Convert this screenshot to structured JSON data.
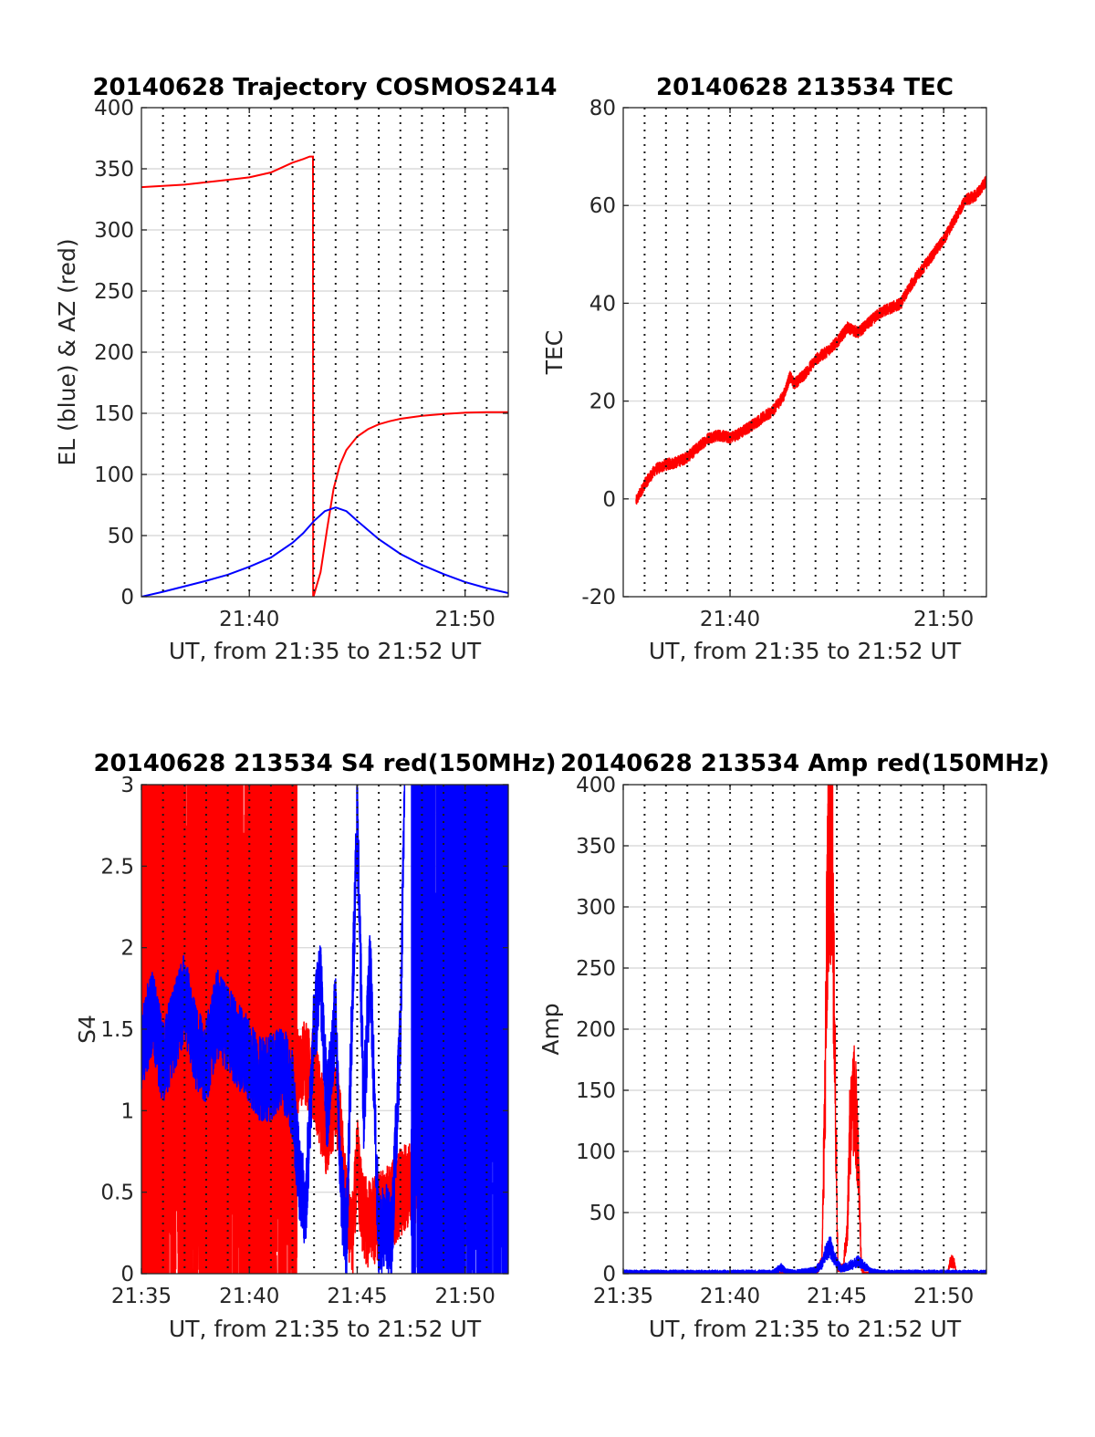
{
  "colors": {
    "red": "#ff0000",
    "blue": "#0000ff",
    "axis": "#262626",
    "grid": "#dcdcdc"
  },
  "chart_data": [
    {
      "id": "trajectory",
      "type": "line",
      "title": "20140628 Trajectory COSMOS2414",
      "xlabel": "UT, from 21:35 to 21:52 UT",
      "ylabel": "EL (blue) & AZ (red)",
      "xlim": [
        0,
        17
      ],
      "ylim": [
        0,
        400
      ],
      "x_ticks": [
        5,
        15
      ],
      "x_tick_labels": [
        "21:40",
        "21:50"
      ],
      "y_ticks": [
        0,
        50,
        100,
        150,
        200,
        250,
        300,
        350,
        400
      ],
      "y_tick_labels": [
        "0",
        "50",
        "100",
        "150",
        "200",
        "250",
        "300",
        "350",
        "400"
      ],
      "vgrid_minutes": [
        1,
        2,
        3,
        4,
        5,
        6,
        7,
        8,
        9,
        10,
        11,
        12,
        13,
        14,
        15,
        16
      ],
      "series": [
        {
          "color": "red",
          "x": [
            0,
            1,
            2,
            3,
            4,
            5,
            6,
            6.5,
            7,
            7.5,
            7.8,
            7.95,
            7.96,
            7.97,
            8.3,
            8.6,
            8.9,
            9.2,
            9.5,
            10,
            10.5,
            11,
            11.5,
            12,
            13,
            14,
            15,
            16,
            17
          ],
          "y": [
            335,
            336,
            337,
            339,
            341,
            343,
            347,
            351,
            355,
            358,
            360,
            360,
            0,
            0,
            20,
            55,
            88,
            108,
            120,
            131,
            137,
            141,
            143.5,
            145.5,
            148,
            149.5,
            150.5,
            151,
            151
          ]
        },
        {
          "color": "blue",
          "x": [
            0,
            1,
            2,
            3,
            4,
            5,
            6,
            7,
            7.5,
            8,
            8.5,
            9,
            9.5,
            10,
            11,
            12,
            13,
            14,
            15,
            16,
            17
          ],
          "y": [
            0,
            4,
            8.5,
            13,
            18,
            24.5,
            32,
            44,
            52,
            62,
            70,
            73,
            70,
            62,
            47,
            35,
            26,
            18.5,
            12,
            7,
            3
          ]
        }
      ]
    },
    {
      "id": "tec",
      "type": "line",
      "title": "20140628 213534 TEC",
      "xlabel": "UT, from 21:35 to 21:52 UT",
      "ylabel": "TEC",
      "xlim": [
        0,
        17
      ],
      "ylim": [
        -20,
        80
      ],
      "x_ticks": [
        5,
        15
      ],
      "x_tick_labels": [
        "21:40",
        "21:50"
      ],
      "y_ticks": [
        -20,
        0,
        20,
        40,
        60,
        80
      ],
      "y_tick_labels": [
        "-20",
        "0",
        "20",
        "40",
        "60",
        "80"
      ],
      "vgrid_minutes": [
        1,
        2,
        3,
        4,
        5,
        6,
        7,
        8,
        9,
        10,
        11,
        12,
        13,
        14,
        15,
        16
      ],
      "series": [
        {
          "color": "red",
          "x": [
            0.6,
            1,
            1.5,
            2,
            2.5,
            3,
            3.5,
            4,
            4.5,
            5,
            5.5,
            6,
            6.5,
            7,
            7.5,
            7.8,
            8,
            8.5,
            9,
            9.5,
            10,
            10.5,
            11,
            11.5,
            12,
            12.5,
            13,
            13.5,
            14,
            14.5,
            15,
            15.5,
            16,
            16.5,
            17
          ],
          "y": [
            -0.5,
            3,
            6,
            7,
            7.5,
            8.5,
            10.5,
            12.5,
            13,
            12.5,
            13.5,
            15,
            16.5,
            18,
            21,
            25,
            23.5,
            25.5,
            28.5,
            30,
            32,
            35,
            34,
            36,
            38,
            39,
            40,
            44,
            47,
            50,
            53,
            57,
            61,
            62,
            65
          ]
        }
      ]
    },
    {
      "id": "s4",
      "type": "line",
      "title": "20140628 213534 S4 red(150MHz)",
      "xlabel": "UT, from 21:35 to 21:52 UT",
      "ylabel": "S4",
      "xlim": [
        0,
        17
      ],
      "ylim": [
        0,
        3
      ],
      "x_ticks": [
        0,
        5,
        10,
        15
      ],
      "x_tick_labels": [
        "21:35",
        "21:40",
        "21:45",
        "21:50"
      ],
      "y_ticks": [
        0,
        0.5,
        1,
        1.5,
        2,
        2.5,
        3
      ],
      "y_tick_labels": [
        "0",
        "0.5",
        "1",
        "1.5",
        "2",
        "2.5",
        "3"
      ],
      "vgrid_minutes": [
        1,
        2,
        3,
        4,
        5,
        6,
        7,
        8,
        9,
        10,
        11,
        12,
        13,
        14,
        15,
        16
      ],
      "series": [
        {
          "color": "red",
          "x": [
            0,
            1,
            2,
            3,
            4,
            5,
            6,
            6.5,
            7,
            7.5,
            8,
            8.3,
            8.6,
            9,
            9.2,
            9.5,
            9.8,
            10,
            10.2,
            10.5,
            11,
            11.5,
            12,
            13,
            13.5,
            14,
            15,
            16,
            17
          ],
          "y": [
            1.3,
            1.5,
            1.4,
            1.6,
            1.5,
            1.3,
            1.4,
            1.4,
            1.2,
            1.3,
            1.2,
            1.0,
            0.85,
            1.1,
            0.9,
            0.4,
            0.25,
            0.7,
            0.4,
            0.3,
            0.35,
            0.4,
            0.5,
            0.6,
            0.5,
            0.8,
            1.0,
            1.2,
            1.3
          ],
          "band_minutes": [
            [
              0,
              7.2
            ],
            [
              13.5,
              13.6
            ],
            [
              14.3,
              14.4
            ]
          ],
          "band_range": [
            0,
            3
          ]
        },
        {
          "color": "blue",
          "x": [
            0,
            0.5,
            1,
            1.5,
            2,
            2.5,
            3,
            3.5,
            4,
            4.5,
            5,
            5.5,
            6,
            6.5,
            7,
            7.3,
            7.6,
            8,
            8.3,
            8.6,
            9,
            9.2,
            9.5,
            9.7,
            10,
            10.3,
            10.6,
            11,
            11.3,
            11.6,
            12,
            12.2
          ],
          "y": [
            1.4,
            1.6,
            1.3,
            1.5,
            1.7,
            1.4,
            1.3,
            1.6,
            1.5,
            1.4,
            1.3,
            1.2,
            1.2,
            1.3,
            1.1,
            0.6,
            0.4,
            1.5,
            1.8,
            1.0,
            1.6,
            0.6,
            0.2,
            1.3,
            2.8,
            1.0,
            1.9,
            0.2,
            0.3,
            0.2,
            1.5,
            3.0
          ],
          "band_minutes": [
            [
              12.5,
              17
            ]
          ],
          "band_range": [
            0,
            3
          ]
        }
      ]
    },
    {
      "id": "amp",
      "type": "line",
      "title": "20140628 213534 Amp red(150MHz)",
      "xlabel": "UT, from 21:35 to 21:52 UT",
      "ylabel": "Amp",
      "xlim": [
        0,
        17
      ],
      "ylim": [
        0,
        400
      ],
      "x_ticks": [
        0,
        5,
        10,
        15
      ],
      "x_tick_labels": [
        "21:35",
        "21:40",
        "21:45",
        "21:50"
      ],
      "y_ticks": [
        0,
        50,
        100,
        150,
        200,
        250,
        300,
        350,
        400
      ],
      "y_tick_labels": [
        "0",
        "50",
        "100",
        "150",
        "200",
        "250",
        "300",
        "350",
        "400"
      ],
      "vgrid_minutes": [
        1,
        2,
        3,
        4,
        5,
        6,
        7,
        8,
        9,
        10,
        11,
        12,
        13,
        14,
        15,
        16
      ],
      "series": [
        {
          "color": "red",
          "x": [
            0,
            9,
            9.3,
            9.45,
            9.55,
            9.65,
            9.75,
            9.85,
            9.95,
            10.05,
            10.3,
            10.5,
            10.6,
            10.75,
            10.85,
            10.95,
            11.05,
            11.15,
            11.3,
            12,
            15.2,
            15.3,
            15.4,
            15.5,
            15.6,
            17
          ],
          "y": [
            0,
            0,
            10,
            150,
            300,
            392,
            370,
            280,
            120,
            5,
            5,
            40,
            120,
            130,
            147,
            110,
            60,
            5,
            0,
            0,
            0,
            10,
            10,
            8,
            0,
            0
          ]
        },
        {
          "color": "blue",
          "x": [
            0,
            2,
            4,
            6,
            7,
            7.4,
            7.6,
            8,
            9,
            9.3,
            9.5,
            9.7,
            9.9,
            10.2,
            10.8,
            11,
            11.3,
            11.6,
            12,
            14,
            17
          ],
          "y": [
            1,
            1,
            1,
            1,
            1,
            5,
            2,
            1,
            3,
            8,
            18,
            22,
            12,
            4,
            8,
            10,
            6,
            2,
            1,
            1,
            1
          ]
        }
      ]
    }
  ]
}
